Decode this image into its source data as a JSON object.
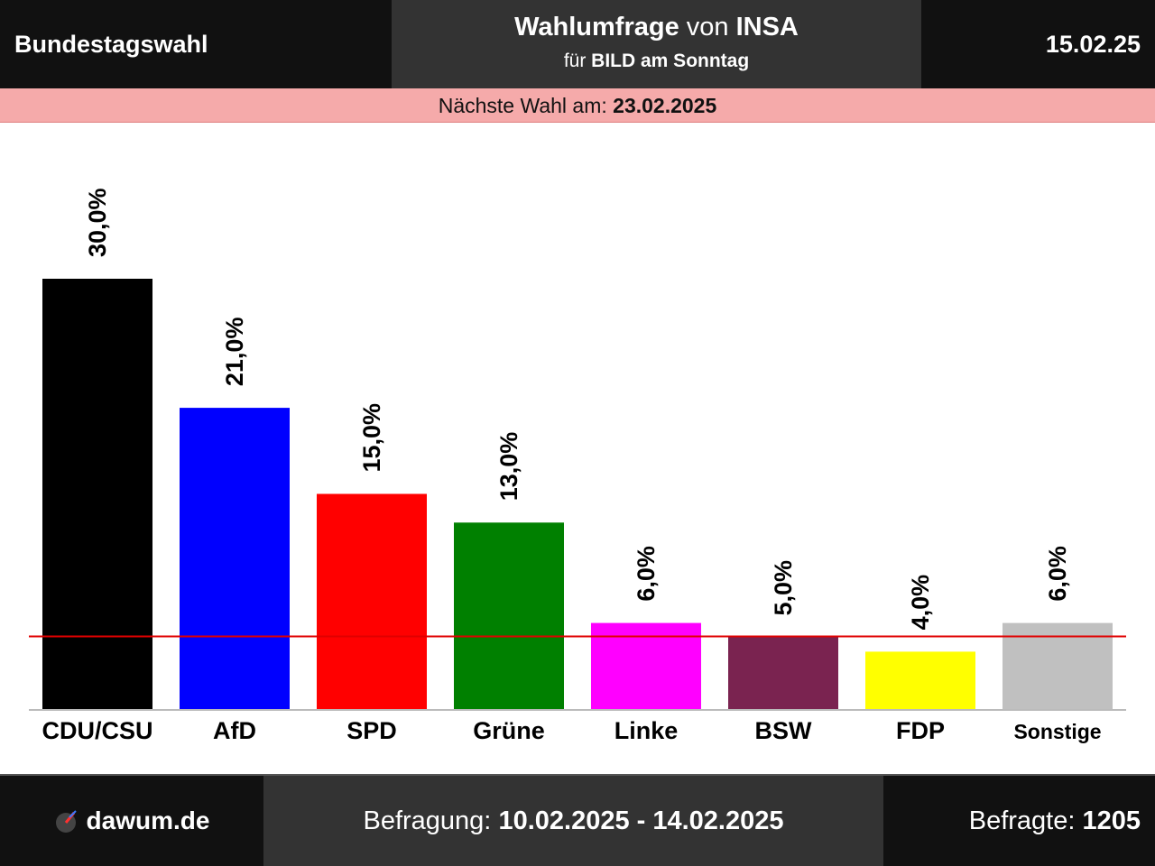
{
  "header": {
    "left_title": "Bundestagswahl",
    "center_line1_bold": "Wahlumfrage",
    "center_line1_mid": "von",
    "center_line1_bold2": "INSA",
    "center_line2_prefix": "für",
    "center_line2_bold": "BILD am Sonntag",
    "date": "15.02.25"
  },
  "next_election": {
    "label": "Nächste Wahl am:",
    "date": "23.02.2025"
  },
  "footer": {
    "site": "dawum.de",
    "survey_label": "Befragung:",
    "survey_period": "10.02.2025 - 14.02.2025",
    "respondents_label": "Befragte:",
    "respondents": "1205"
  },
  "colors": {
    "threshold_line": "#e00000"
  },
  "chart_data": {
    "type": "bar",
    "categories": [
      "CDU/CSU",
      "AfD",
      "SPD",
      "Grüne",
      "Linke",
      "BSW",
      "FDP",
      "Sonstige"
    ],
    "values": [
      30.0,
      21.0,
      15.0,
      13.0,
      6.0,
      5.0,
      4.0,
      6.0
    ],
    "value_labels": [
      "30,0%",
      "21,0%",
      "15,0%",
      "13,0%",
      "6,0%",
      "5,0%",
      "4,0%",
      "6,0%"
    ],
    "colors": [
      "#000000",
      "#0000ff",
      "#ff0000",
      "#008000",
      "#ff00ff",
      "#7a2350",
      "#ffff00",
      "#c0c0c0"
    ],
    "threshold": 5.0,
    "ylim": [
      0,
      40
    ],
    "grid": false
  }
}
